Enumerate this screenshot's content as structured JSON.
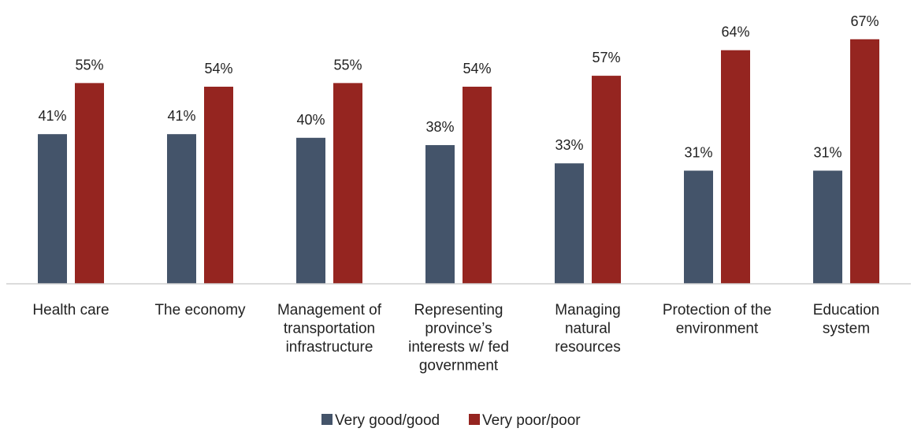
{
  "chart_data": {
    "type": "bar",
    "categories": [
      [
        "Health care"
      ],
      [
        "The economy"
      ],
      [
        "Management of",
        "transportation",
        "infrastructure"
      ],
      [
        "Representing",
        "province’s",
        "interests w/ fed",
        "government"
      ],
      [
        "Managing",
        "natural",
        "resources"
      ],
      [
        "Protection of the",
        "environment"
      ],
      [
        "Education",
        "system"
      ]
    ],
    "series": [
      {
        "name": "Very good/good",
        "color": "#44546A",
        "values": [
          41,
          41,
          40,
          38,
          33,
          31,
          31
        ],
        "labels": [
          "41%",
          "41%",
          "40%",
          "38%",
          "33%",
          "31%",
          "31%"
        ]
      },
      {
        "name": "Very poor/poor",
        "color": "#952520",
        "values": [
          55,
          54,
          55,
          54,
          57,
          64,
          67
        ],
        "labels": [
          "55%",
          "54%",
          "55%",
          "54%",
          "57%",
          "64%",
          "67%"
        ]
      }
    ],
    "ylim": [
      0,
      70
    ],
    "grid": false,
    "legend_position": "bottom",
    "title": "",
    "xlabel": "",
    "ylabel": ""
  }
}
